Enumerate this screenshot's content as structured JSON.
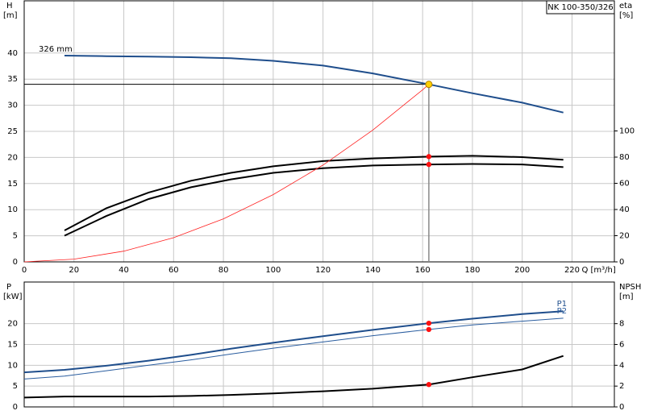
{
  "chart_data": [
    {
      "type": "line",
      "title": "NK 100-350/326",
      "x_label": "Q [m³/h]",
      "y_label": "H",
      "y_unit": "[m]",
      "y2_label": "eta",
      "y2_unit": "[%]",
      "annotation": "326 mm",
      "x": [
        16.2,
        33,
        50,
        67,
        83,
        100,
        120,
        140,
        162.5,
        180,
        200,
        216.5
      ],
      "xlim": [
        0,
        237
      ],
      "xticks": [
        0,
        20,
        40,
        60,
        80,
        100,
        120,
        140,
        160,
        180,
        200,
        220
      ],
      "ylim": [
        0,
        50
      ],
      "yticks": [
        0,
        5,
        10,
        15,
        20,
        25,
        30,
        35,
        40
      ],
      "y2lim": [
        0,
        199.4
      ],
      "y2ticks": [
        0,
        20,
        40,
        60,
        80,
        100
      ],
      "grid": true,
      "duty_point": {
        "x": 162.5,
        "y": 34
      },
      "series": [
        {
          "color": "#1f4e8c",
          "values": [
            39.5,
            39.4,
            39.3,
            39.2,
            39.0,
            38.5,
            37.6,
            36.1,
            34.0,
            32.3,
            30.5,
            28.6
          ]
        },
        {
          "color": "#000000",
          "axis": "y2",
          "values": [
            24,
            41,
            53,
            62,
            68,
            73,
            77,
            79,
            80.4,
            81,
            80,
            78
          ]
        },
        {
          "color": "#000000",
          "axis": "y2",
          "values": [
            20,
            35,
            48,
            57,
            63,
            68,
            71.6,
            73.6,
            74.4,
            74.8,
            74.4,
            72.4
          ]
        },
        {
          "color": "#ff2020",
          "x": [
            0,
            20,
            40,
            60,
            80,
            100,
            120,
            140,
            160,
            162.5
          ],
          "values": [
            0,
            0.52,
            2.06,
            4.63,
            8.24,
            12.88,
            18.54,
            25.24,
            32.96,
            34.0
          ]
        }
      ]
    },
    {
      "type": "line",
      "y_label": "P",
      "y_unit": "[kW]",
      "y2_label": "NPSH",
      "y2_unit": "[m]",
      "x": [
        0,
        16.2,
        33,
        50,
        67,
        83,
        100,
        120,
        140,
        162.5,
        180,
        200,
        216.5
      ],
      "xlim": [
        0,
        237
      ],
      "ylim": [
        0,
        30
      ],
      "yticks": [
        0,
        5,
        10,
        15,
        20
      ],
      "y2lim": [
        0,
        12
      ],
      "y2ticks": [
        0,
        2,
        4,
        6,
        8
      ],
      "grid": true,
      "series": [
        {
          "name": "P1",
          "color": "#1f4e8c",
          "values": [
            8.3,
            8.9,
            9.9,
            11.1,
            12.5,
            14.0,
            15.4,
            17.0,
            18.5,
            20.1,
            21.2,
            22.3,
            23.0
          ]
        },
        {
          "name": "P2",
          "color": "#2a5d9f",
          "values": [
            6.7,
            7.4,
            8.7,
            10.0,
            11.3,
            12.7,
            14.1,
            15.6,
            17.1,
            18.6,
            19.7,
            20.6,
            21.3
          ]
        },
        {
          "color": "#000000",
          "axis": "y2",
          "values": [
            0.9,
            1.0,
            1.0,
            1.0,
            1.05,
            1.15,
            1.3,
            1.5,
            1.75,
            2.15,
            2.85,
            3.6,
            4.9
          ]
        }
      ]
    }
  ]
}
